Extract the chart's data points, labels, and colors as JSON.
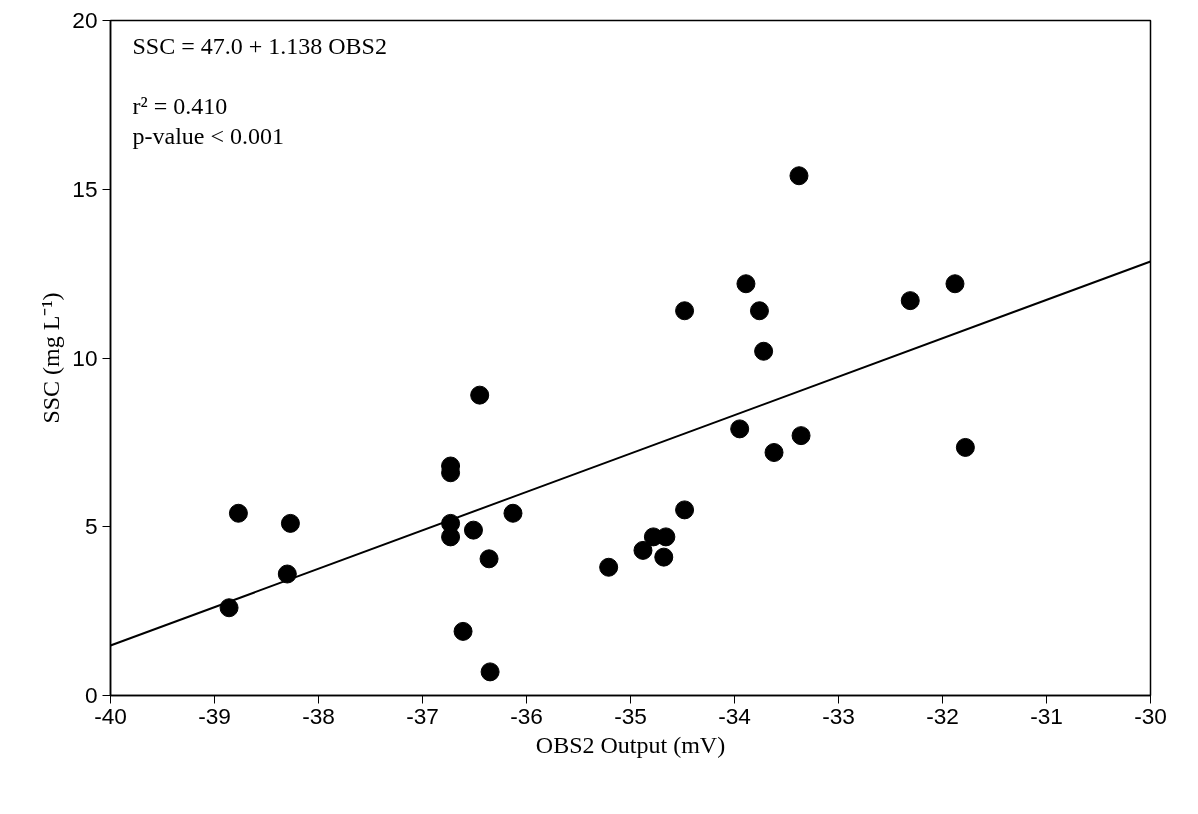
{
  "chart_data": {
    "type": "scatter",
    "xlabel": "OBS2 Output (mV)",
    "ylabel": "SSC (mg L⁻¹)",
    "xlim": [
      -40,
      -30
    ],
    "ylim": [
      0,
      20
    ],
    "xticks": [
      -40,
      -39,
      -38,
      -37,
      -36,
      -35,
      -34,
      -33,
      -32,
      -31,
      -30
    ],
    "yticks": [
      0,
      5,
      10,
      15,
      20
    ],
    "grid": false,
    "annotations": [
      "SSC = 47.0 + 1.138 OBS2",
      "r² = 0.410",
      "p-value < 0.001"
    ],
    "series": [
      {
        "marker": "circle",
        "color": "#000000",
        "x": [
          -36.45,
          -36.73,
          -36.73,
          -38.77,
          -38.27,
          -38.3,
          -38.86,
          -36.73,
          -36.73,
          -36.51,
          -36.13,
          -36.36,
          -36.61,
          -36.35,
          -33.38,
          -33.89,
          -34.48,
          -33.76,
          -33.72,
          -32.31,
          -31.88,
          -33.95,
          -33.36,
          -33.62,
          -31.78,
          -34.48,
          -34.78,
          -34.66,
          -34.88,
          -34.68,
          -35.21
        ],
        "values": [
          8.9,
          6.8,
          6.6,
          5.4,
          5.1,
          3.6,
          2.6,
          5.1,
          4.7,
          4.9,
          5.4,
          4.05,
          1.9,
          0.7,
          15.4,
          12.2,
          11.4,
          11.4,
          10.2,
          11.7,
          12.2,
          7.9,
          7.7,
          7.2,
          7.35,
          5.5,
          4.7,
          4.7,
          4.3,
          4.1,
          3.8
        ]
      },
      {
        "type": "line",
        "color": "#000000",
        "x": [
          -40,
          -30
        ],
        "values": [
          1.48,
          12.86
        ]
      }
    ]
  }
}
